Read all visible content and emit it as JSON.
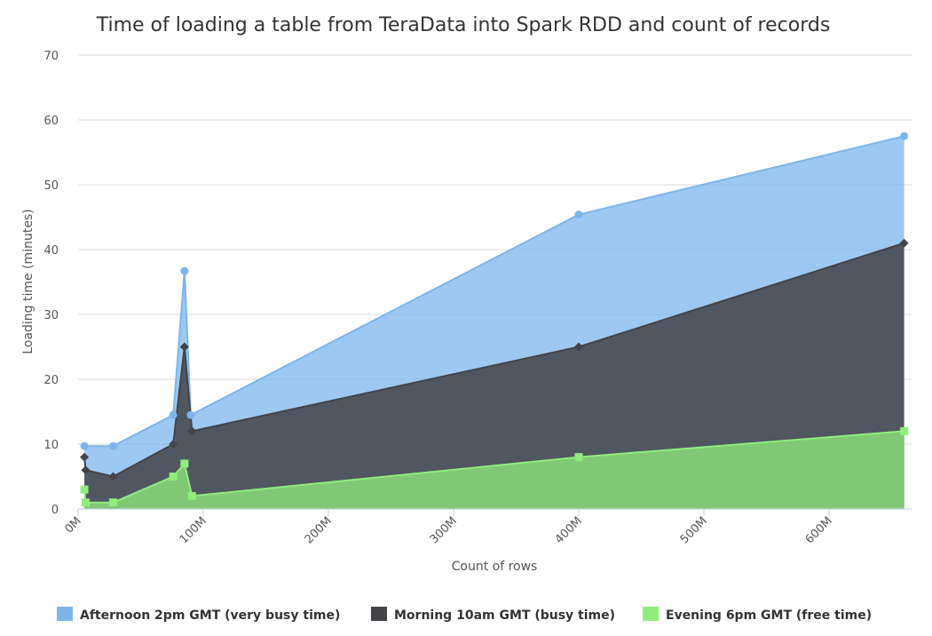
{
  "chart_data": {
    "type": "area",
    "title": "Time of loading a table from TeraData into Spark RDD and count of records",
    "xlabel": "Count of rows",
    "ylabel": "Loading time (minutes)",
    "xlim": [
      0,
      660
    ],
    "ylim": [
      0,
      70
    ],
    "x_unit": "M",
    "x_ticks": [
      0,
      100,
      200,
      300,
      400,
      500,
      600
    ],
    "x_tick_labels": [
      "0M",
      "100M",
      "200M",
      "300M",
      "400M",
      "500M",
      "600M"
    ],
    "y_ticks": [
      0,
      10,
      20,
      30,
      40,
      50,
      60,
      70
    ],
    "y_tick_labels": [
      "0",
      "10",
      "20",
      "30",
      "40",
      "50",
      "60",
      "70"
    ],
    "grid": true,
    "legend_position": "bottom",
    "stacking": "overlaid",
    "series": [
      {
        "name": "Afternoon 2pm GMT (very busy time)",
        "color": "#7cb5ec",
        "marker": "circle",
        "points": [
          [
            5,
            9.7
          ],
          [
            28,
            9.7
          ],
          [
            76,
            14.5
          ],
          [
            85,
            36.7
          ],
          [
            90,
            14.5
          ],
          [
            400,
            45.4
          ],
          [
            660,
            57.5
          ]
        ]
      },
      {
        "name": "Morning 10am GMT (busy time)",
        "color": "#434348",
        "marker": "diamond",
        "points": [
          [
            5,
            8
          ],
          [
            6,
            6
          ],
          [
            28,
            5
          ],
          [
            76,
            10
          ],
          [
            85,
            25
          ],
          [
            91,
            12
          ],
          [
            400,
            25
          ],
          [
            660,
            41
          ]
        ]
      },
      {
        "name": "Evening 6pm GMT (free time)",
        "color": "#90ed7d",
        "marker": "square",
        "points": [
          [
            5,
            3
          ],
          [
            6,
            1
          ],
          [
            28,
            1
          ],
          [
            76,
            5
          ],
          [
            85,
            7
          ],
          [
            91,
            2
          ],
          [
            400,
            8
          ],
          [
            660,
            12
          ]
        ]
      }
    ]
  }
}
